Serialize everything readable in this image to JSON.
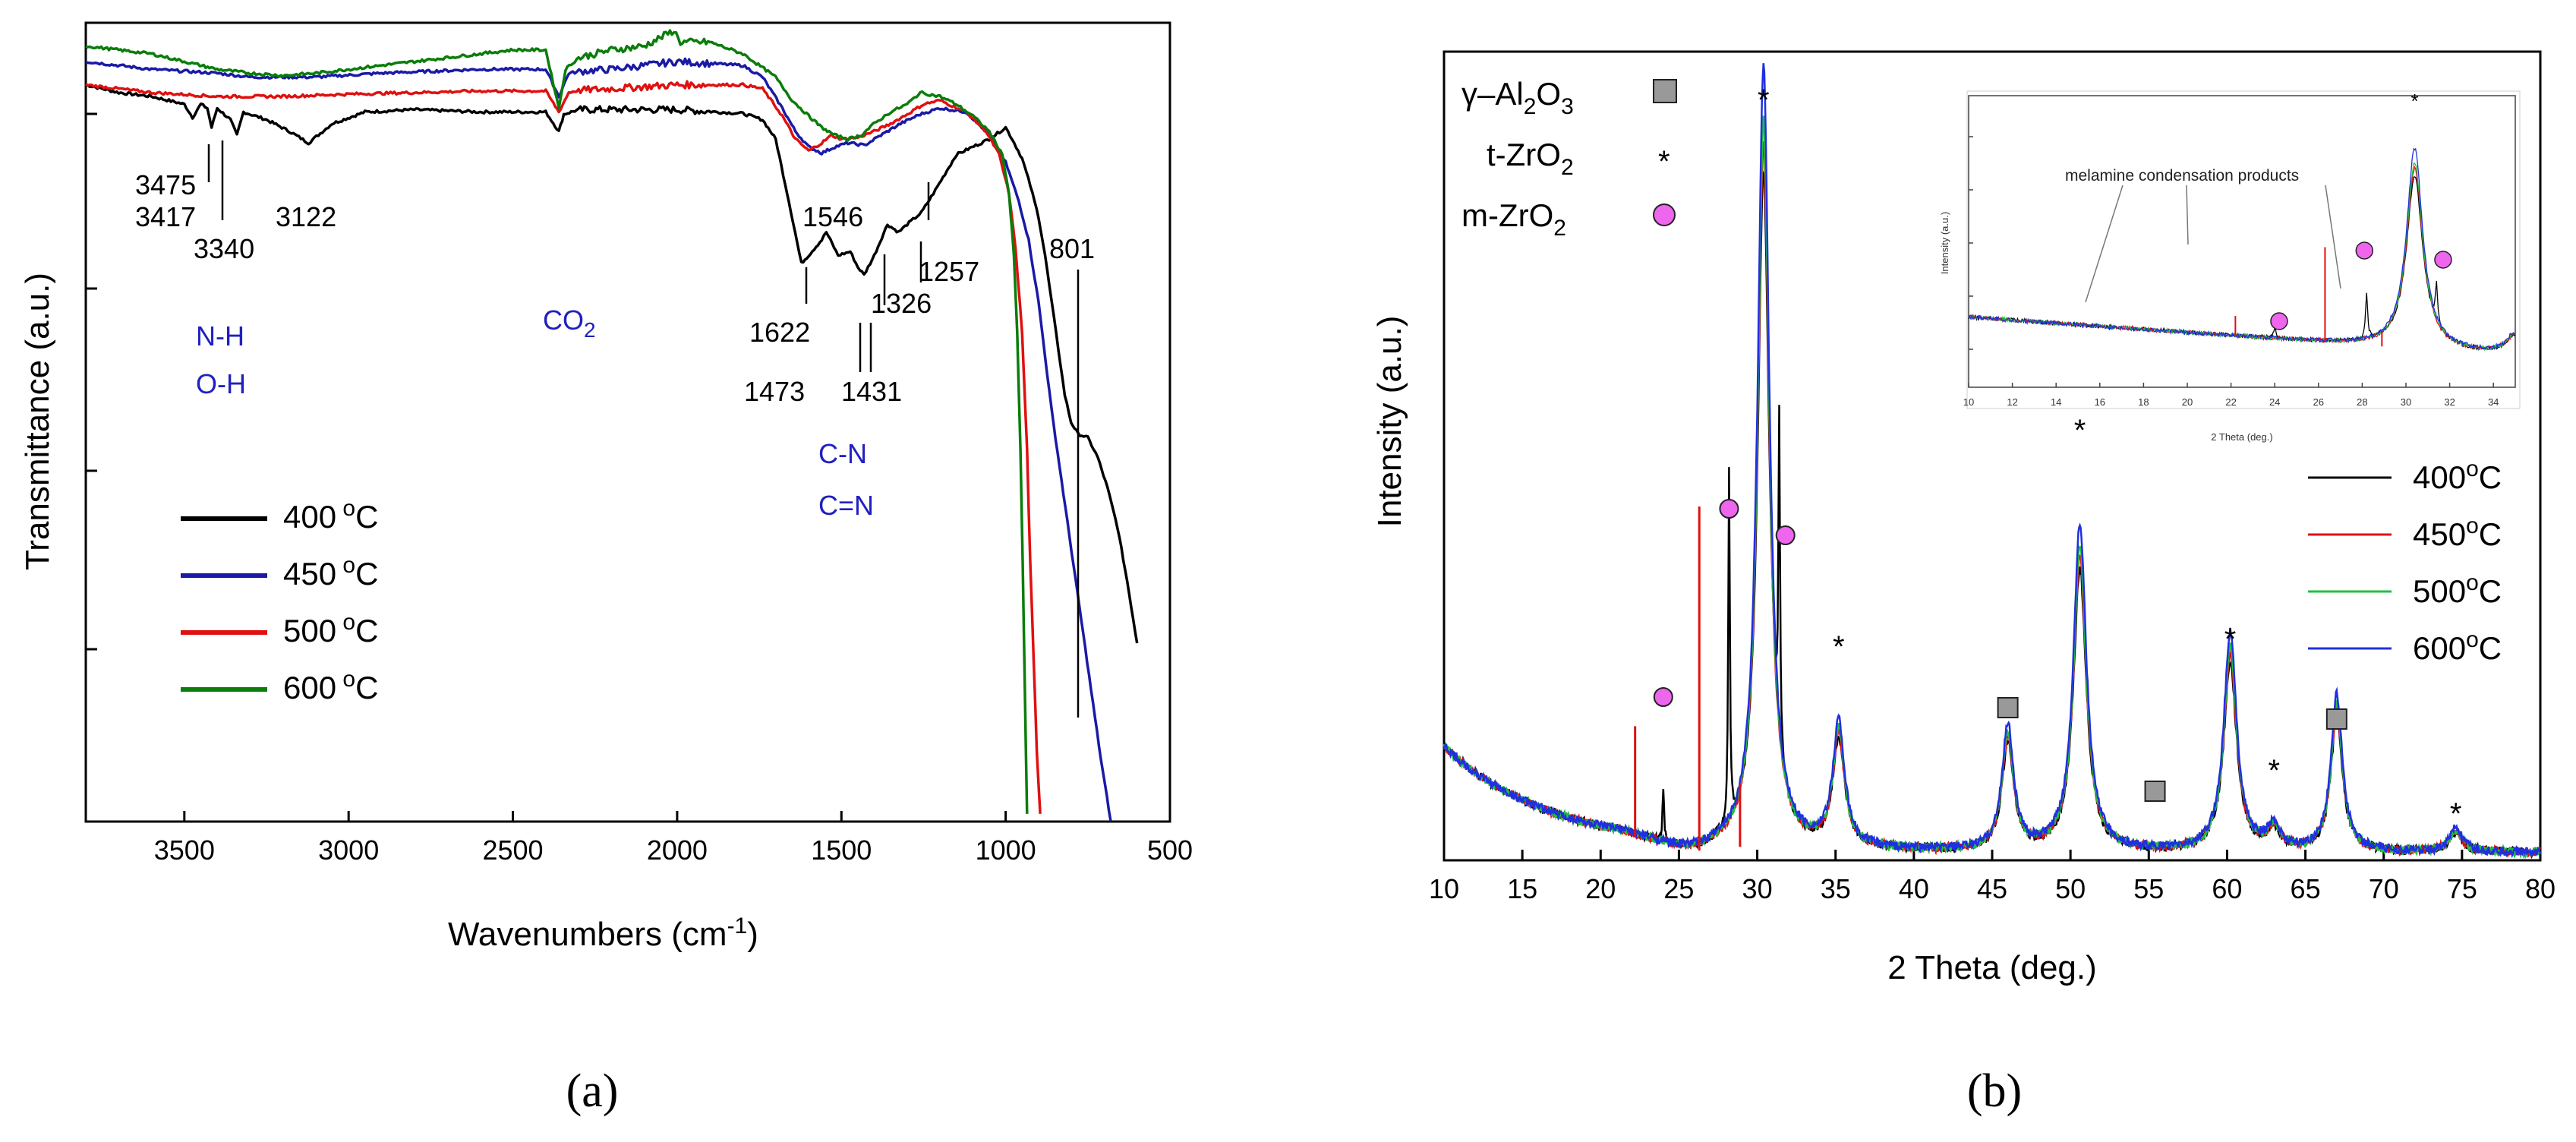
{
  "chart_data": [
    {
      "id": "a",
      "type": "line",
      "panel_label": "(a)",
      "xlabel": "Wavenumbers (cm",
      "xlabel_sup": "-1",
      "xlabel_tail": ")",
      "ylabel": "Transmittance (a.u.)",
      "xlim": [
        3800,
        500
      ],
      "xticks": [
        "3500",
        "3000",
        "2500",
        "2000",
        "1500",
        "1000",
        "500"
      ],
      "legend_position": "center-left",
      "series": [
        {
          "name": "400 °C",
          "legend": "400",
          "color": "#000000",
          "x": [
            3800,
            3700,
            3600,
            3500,
            3475,
            3450,
            3430,
            3417,
            3400,
            3360,
            3340,
            3320,
            3250,
            3180,
            3122,
            3050,
            2950,
            2800,
            2600,
            2400,
            2360,
            2345,
            2300,
            2200,
            2000,
            1800,
            1740,
            1700,
            1660,
            1622,
            1600,
            1560,
            1546,
            1510,
            1473,
            1450,
            1431,
            1400,
            1360,
            1326,
            1300,
            1257,
            1220,
            1150,
            1050,
            1000,
            980,
            950,
            925,
            900,
            880,
            860,
            840,
            820,
            801,
            780,
            750,
            720,
            690,
            660,
            630,
            600
          ],
          "y": [
            92,
            91,
            90.5,
            89.5,
            87.8,
            89.5,
            89,
            86.5,
            89,
            87.5,
            85.5,
            88.5,
            87.5,
            86,
            84.5,
            87,
            88.5,
            88.8,
            88.5,
            88.5,
            86,
            88.2,
            88.8,
            88.8,
            88.8,
            88.3,
            87.5,
            85,
            77,
            69,
            70,
            72,
            73,
            70,
            70.5,
            68.5,
            67.5,
            70,
            74,
            73,
            74,
            75.5,
            78,
            83,
            85,
            86.5,
            85,
            82.5,
            79,
            75,
            70,
            64,
            58,
            52,
            48.5,
            47,
            46.5,
            44,
            40,
            35,
            28,
            20
          ]
        },
        {
          "name": "450 °C",
          "legend": "450",
          "color": "#1a1aa6",
          "x": [
            3800,
            3600,
            3400,
            3300,
            3200,
            3100,
            2900,
            2600,
            2400,
            2360,
            2330,
            2280,
            2200,
            2000,
            1800,
            1740,
            1680,
            1640,
            1600,
            1560,
            1520,
            1480,
            1430,
            1380,
            1320,
            1260,
            1200,
            1120,
            1060,
            1000,
            960,
            930,
            900,
            880,
            860,
            830,
            800,
            770,
            740,
            710,
            680
          ],
          "y": [
            95,
            94,
            93.5,
            93,
            93,
            93,
            93.5,
            94,
            94,
            90.5,
            93.5,
            93.8,
            94,
            95,
            94.5,
            93,
            89,
            86,
            84,
            83.2,
            84,
            84.5,
            84.2,
            85.5,
            87,
            88.2,
            89,
            88.5,
            86,
            82,
            77,
            72,
            64,
            57,
            50,
            41,
            32,
            23,
            14,
            5,
            -3
          ]
        },
        {
          "name": "500 °C",
          "legend": "500",
          "color": "#e01010",
          "x": [
            3800,
            3600,
            3400,
            3200,
            3000,
            2800,
            2600,
            2400,
            2360,
            2330,
            2300,
            2200,
            2000,
            1800,
            1740,
            1680,
            1640,
            1600,
            1560,
            1530,
            1500,
            1450,
            1400,
            1350,
            1300,
            1250,
            1200,
            1120,
            1060,
            1020,
            990,
            970,
            950,
            935,
            925,
            915,
            905,
            895
          ],
          "y": [
            92,
            91,
            90.5,
            90.5,
            90.8,
            91,
            91.2,
            91.2,
            88.5,
            91,
            91.3,
            91.5,
            92,
            92,
            91.5,
            88,
            85,
            83.5,
            84.5,
            85.5,
            85,
            85.2,
            86,
            87,
            88.2,
            89.5,
            90,
            88.5,
            86,
            83,
            78,
            71,
            60,
            45,
            30,
            18,
            6,
            -2
          ]
        },
        {
          "name": "600 °C",
          "legend": "600",
          "color": "#0a7d0a",
          "x": [
            3800,
            3700,
            3600,
            3500,
            3400,
            3300,
            3200,
            3100,
            3000,
            2900,
            2800,
            2700,
            2600,
            2500,
            2400,
            2360,
            2340,
            2300,
            2200,
            2100,
            2010,
            1990,
            1900,
            1800,
            1700,
            1650,
            1600,
            1560,
            1520,
            1480,
            1440,
            1400,
            1350,
            1300,
            1260,
            1200,
            1150,
            1100,
            1050,
            1010,
            990,
            975,
            965,
            955,
            948,
            942,
            935
          ],
          "y": [
            97,
            96.5,
            96,
            95,
            94,
            93.5,
            93.2,
            93.5,
            94,
            94.5,
            95,
            95.5,
            96,
            96.5,
            96.5,
            89,
            94,
            95.5,
            96.5,
            97,
            99,
            97.5,
            97.5,
            96,
            93,
            90,
            88,
            86.5,
            85.5,
            85,
            85.5,
            87,
            88.5,
            89.5,
            91,
            90.5,
            89.5,
            88,
            86,
            83,
            78,
            70,
            60,
            45,
            30,
            15,
            -2
          ]
        }
      ],
      "peak_labels": [
        "3475",
        "3417",
        "3340",
        "3122",
        "1546",
        "1257",
        "801",
        "1326",
        "1622",
        "1473",
        "1431"
      ],
      "group_labels": {
        "nh": "N-H",
        "oh": "O-H",
        "co2": "CO",
        "co2_sub": "2",
        "cn": "C-N",
        "cdn": "C=N"
      }
    },
    {
      "id": "b",
      "type": "line",
      "panel_label": "(b)",
      "xlabel": "2 Theta (deg.)",
      "ylabel": "Intensity (a.u.)",
      "xlim": [
        10,
        80
      ],
      "xticks": [
        "10",
        "15",
        "20",
        "25",
        "30",
        "35",
        "40",
        "45",
        "50",
        "55",
        "60",
        "65",
        "70",
        "75",
        "80"
      ],
      "peaks": [
        {
          "pos": 30.4,
          "h": 100,
          "w": 0.45,
          "phase": "t-ZrO2"
        },
        {
          "pos": 35.2,
          "h": 16,
          "w": 0.45,
          "phase": "t-ZrO2"
        },
        {
          "pos": 50.6,
          "h": 42,
          "w": 0.5,
          "phase": "t-ZrO2"
        },
        {
          "pos": 60.2,
          "h": 28,
          "w": 0.5,
          "phase": "t-ZrO2"
        },
        {
          "pos": 63.0,
          "h": 3,
          "w": 0.5,
          "phase": "t-ZrO2"
        },
        {
          "pos": 74.6,
          "h": 3,
          "w": 0.5,
          "phase": "t-ZrO2"
        },
        {
          "pos": 46.0,
          "h": 16,
          "w": 0.45,
          "phase": "γ-Al2O3"
        },
        {
          "pos": 67.0,
          "h": 20,
          "w": 0.45,
          "phase": "γ-Al2O3"
        },
        {
          "pos": 28.2,
          "h": 45,
          "w": 0.06,
          "phase": "m-ZrO2"
        },
        {
          "pos": 31.4,
          "h": 42,
          "w": 0.06,
          "phase": "m-ZrO2"
        },
        {
          "pos": 24.0,
          "h": 7,
          "w": 0.06,
          "phase": "m-ZrO2"
        }
      ],
      "series": [
        {
          "name": "400 °C",
          "legend": "400",
          "color": "#000000",
          "scale": 0.86
        },
        {
          "name": "450 °C",
          "legend": "450",
          "color": "#e01010",
          "scale": 0.9
        },
        {
          "name": "500 °C",
          "legend": "500",
          "color": "#20c040",
          "scale": 0.93
        },
        {
          "name": "600 °C",
          "legend": "600",
          "color": "#2030e0",
          "scale": 1.0
        }
      ],
      "phase_legend": [
        {
          "name": "γ–Al",
          "sub1": "2",
          "mid": "O",
          "sub2": "3",
          "marker": "square"
        },
        {
          "name": "t-ZrO",
          "sub1": "2",
          "marker": "star"
        },
        {
          "name": "m-ZrO",
          "sub1": "2",
          "marker": "circle"
        }
      ],
      "inset": {
        "xlabel": "2 Theta (deg.)",
        "ylabel": "Intensity (a.u.)",
        "xlim": [
          10,
          35
        ],
        "xticks": [
          "10",
          "12",
          "14",
          "16",
          "18",
          "20",
          "22",
          "24",
          "26",
          "28",
          "30",
          "32",
          "34"
        ],
        "annotation": "melamine condensation products"
      }
    }
  ],
  "colors": {
    "black": "#000000",
    "blue": "#1a1aa6",
    "red": "#e01010",
    "green": "#0a7d0a",
    "label_blue": "#2020c0",
    "pink": "#ee66ee"
  }
}
